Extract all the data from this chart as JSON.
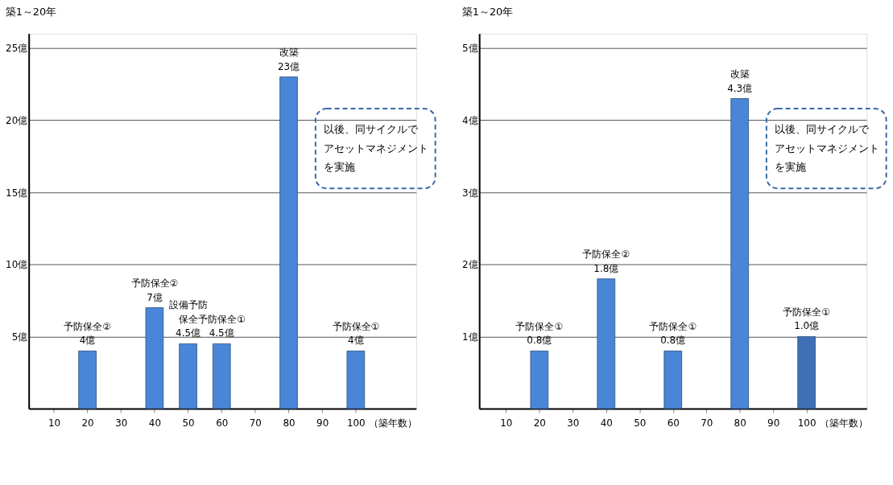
{
  "chart_data": [
    {
      "type": "bar",
      "title": "築1～20年",
      "x": [
        20,
        40,
        50,
        60,
        80,
        100
      ],
      "values": [
        4,
        7,
        4.5,
        4.5,
        23,
        4
      ],
      "colors": [
        "#4a86d8",
        "#4a86d8",
        "#4a86d8",
        "#4a86d8",
        "#4a86d8",
        "#4a86d8"
      ],
      "value_labels": [
        "4億",
        "7億",
        "4.5億",
        "4.5億",
        "23億",
        "4億"
      ],
      "xlabel": "（築年数）",
      "xlim": [
        2.5,
        118
      ],
      "xticks": [
        10,
        20,
        30,
        40,
        50,
        60,
        70,
        80,
        90,
        100
      ],
      "ylim": [
        0,
        26
      ],
      "yticks": [
        {
          "value": 5,
          "label": "5億"
        },
        {
          "value": 10,
          "label": "10億"
        },
        {
          "value": 15,
          "label": "15億"
        },
        {
          "value": 20,
          "label": "20億"
        },
        {
          "value": 25,
          "label": "25億"
        }
      ],
      "grid": "y",
      "legend": false,
      "annotations": [
        {
          "text": "予防保全②",
          "x": 20,
          "y": 4
        },
        {
          "text": "予防保全②",
          "x": 40,
          "y": 7
        },
        {
          "text": "設備予防保全",
          "x": 50,
          "y": 4.5
        },
        {
          "text": "予防保全①",
          "x": 60,
          "y": 4.5
        },
        {
          "text": "改築",
          "x": 80,
          "y": 23
        },
        {
          "text": "予防保全①",
          "x": 100,
          "y": 4
        },
        "以後、同サイクルで",
        "アセットマネジメント",
        "を実施"
      ]
    },
    {
      "type": "bar",
      "title": "築1～20年",
      "x": [
        20,
        40,
        60,
        80,
        100
      ],
      "values": [
        0.8,
        1.8,
        0.8,
        4.3,
        1.0
      ],
      "colors": [
        "#4a86d8",
        "#4a86d8",
        "#4a86d8",
        "#4a86d8",
        "#3f6fb5"
      ],
      "value_labels": [
        "0.8億",
        "1.8億",
        "0.8億",
        "4.3億",
        "1.0億"
      ],
      "xlabel": "（築年数）",
      "xlim": [
        2,
        118
      ],
      "xticks": [
        10,
        20,
        30,
        40,
        50,
        60,
        70,
        80,
        90,
        100
      ],
      "ylim": [
        0,
        5.2
      ],
      "yticks": [
        {
          "value": 1,
          "label": "1億"
        },
        {
          "value": 2,
          "label": "2億"
        },
        {
          "value": 3,
          "label": "3億"
        },
        {
          "value": 4,
          "label": "4億"
        },
        {
          "value": 5,
          "label": "5億"
        }
      ],
      "grid": "y",
      "legend": false,
      "annotations": [
        {
          "text": "予防保全①",
          "x": 20,
          "y": 0.8
        },
        {
          "text": "予防保全②",
          "x": 40,
          "y": 1.8
        },
        {
          "text": "予防保全①",
          "x": 60,
          "y": 0.8
        },
        {
          "text": "改築",
          "x": 80,
          "y": 4.3
        },
        {
          "text": "予防保全①",
          "x": 100,
          "y": 1.0
        },
        "以後、同サイクルで",
        "アセットマネジメント",
        "を実施"
      ]
    }
  ]
}
